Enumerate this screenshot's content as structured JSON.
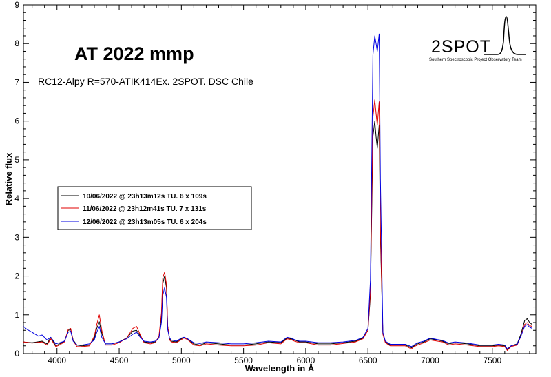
{
  "chart_data": {
    "type": "line",
    "title": "AT 2022 mmp",
    "subtitle": "RC12-Alpy R=570-ATIK414Ex. 2SPOT. DSC Chile",
    "xlabel": "Wavelength in Å",
    "ylabel": "Relative flux",
    "xlim": [
      3730,
      7850
    ],
    "ylim": [
      0,
      9
    ],
    "xticks": [
      4000,
      4500,
      5000,
      5500,
      6000,
      6500,
      7000,
      7500
    ],
    "yticks": [
      0,
      1,
      2,
      3,
      4,
      5,
      6,
      7,
      8,
      9
    ],
    "grid": false,
    "legend_position": "left-middle",
    "series": [
      {
        "name": "10/06/2022 @ 23h13m12s TU.  6 x 109s",
        "color": "#000000",
        "x": [
          3730,
          3800,
          3880,
          3920,
          3950,
          3990,
          4020,
          4060,
          4090,
          4110,
          4130,
          4160,
          4200,
          4260,
          4300,
          4320,
          4340,
          4360,
          4390,
          4440,
          4500,
          4560,
          4610,
          4640,
          4670,
          4700,
          4750,
          4790,
          4820,
          4840,
          4850,
          4865,
          4880,
          4890,
          4905,
          4920,
          4960,
          5000,
          5020,
          5050,
          5100,
          5150,
          5200,
          5300,
          5400,
          5500,
          5600,
          5700,
          5800,
          5850,
          5880,
          5910,
          5950,
          6000,
          6100,
          6200,
          6300,
          6400,
          6460,
          6500,
          6520,
          6540,
          6555,
          6565,
          6575,
          6590,
          6600,
          6620,
          6640,
          6680,
          6750,
          6800,
          6850,
          6870,
          6900,
          6950,
          7000,
          7060,
          7100,
          7150,
          7200,
          7300,
          7400,
          7500,
          7550,
          7600,
          7620,
          7650,
          7700,
          7730,
          7760,
          7780,
          7800,
          7820
        ],
        "y": [
          0.3,
          0.28,
          0.32,
          0.25,
          0.42,
          0.2,
          0.25,
          0.32,
          0.6,
          0.62,
          0.35,
          0.22,
          0.2,
          0.22,
          0.4,
          0.65,
          0.82,
          0.52,
          0.25,
          0.25,
          0.3,
          0.4,
          0.58,
          0.6,
          0.45,
          0.3,
          0.28,
          0.3,
          0.42,
          0.95,
          1.8,
          2.0,
          1.7,
          0.7,
          0.38,
          0.32,
          0.3,
          0.38,
          0.42,
          0.38,
          0.25,
          0.22,
          0.28,
          0.25,
          0.22,
          0.22,
          0.25,
          0.3,
          0.28,
          0.4,
          0.38,
          0.35,
          0.3,
          0.3,
          0.25,
          0.25,
          0.28,
          0.32,
          0.4,
          0.6,
          1.5,
          5.6,
          6.0,
          5.6,
          5.3,
          5.9,
          3.0,
          0.5,
          0.3,
          0.22,
          0.22,
          0.22,
          0.15,
          0.2,
          0.25,
          0.3,
          0.38,
          0.35,
          0.32,
          0.25,
          0.28,
          0.25,
          0.2,
          0.2,
          0.22,
          0.2,
          0.1,
          0.2,
          0.25,
          0.5,
          0.85,
          0.9,
          0.8,
          0.75
        ]
      },
      {
        "name": "11/06/2022 @ 23h12m41s TU.  7 x 131s",
        "color": "#e00000",
        "x": [
          3730,
          3800,
          3880,
          3920,
          3950,
          3990,
          4020,
          4060,
          4090,
          4110,
          4130,
          4160,
          4200,
          4260,
          4300,
          4320,
          4340,
          4360,
          4390,
          4440,
          4500,
          4560,
          4610,
          4640,
          4670,
          4700,
          4750,
          4790,
          4820,
          4840,
          4850,
          4865,
          4880,
          4890,
          4905,
          4920,
          4960,
          5000,
          5020,
          5050,
          5100,
          5150,
          5200,
          5300,
          5400,
          5500,
          5600,
          5700,
          5800,
          5850,
          5880,
          5910,
          5950,
          6000,
          6100,
          6200,
          6300,
          6400,
          6460,
          6500,
          6520,
          6540,
          6555,
          6565,
          6575,
          6590,
          6600,
          6620,
          6640,
          6680,
          6750,
          6800,
          6850,
          6870,
          6900,
          6950,
          7000,
          7060,
          7100,
          7150,
          7200,
          7300,
          7400,
          7500,
          7550,
          7600,
          7620,
          7650,
          7700,
          7730,
          7760,
          7780,
          7800,
          7820
        ],
        "y": [
          0.3,
          0.27,
          0.3,
          0.22,
          0.38,
          0.18,
          0.22,
          0.3,
          0.62,
          0.65,
          0.33,
          0.18,
          0.18,
          0.2,
          0.45,
          0.75,
          1.0,
          0.6,
          0.22,
          0.22,
          0.28,
          0.4,
          0.65,
          0.7,
          0.48,
          0.28,
          0.25,
          0.28,
          0.45,
          1.05,
          1.95,
          2.1,
          1.8,
          0.72,
          0.35,
          0.3,
          0.28,
          0.36,
          0.4,
          0.36,
          0.22,
          0.2,
          0.25,
          0.22,
          0.2,
          0.2,
          0.22,
          0.28,
          0.25,
          0.38,
          0.36,
          0.32,
          0.28,
          0.28,
          0.22,
          0.22,
          0.26,
          0.3,
          0.38,
          0.6,
          1.6,
          6.1,
          6.55,
          6.2,
          5.9,
          6.5,
          3.2,
          0.5,
          0.28,
          0.2,
          0.2,
          0.2,
          0.12,
          0.18,
          0.22,
          0.28,
          0.35,
          0.32,
          0.3,
          0.22,
          0.25,
          0.22,
          0.18,
          0.18,
          0.2,
          0.18,
          0.08,
          0.18,
          0.22,
          0.45,
          0.75,
          0.8,
          0.72,
          0.7
        ]
      },
      {
        "name": "12/06/2022 @ 23h13m05s TU.  6 x 204s",
        "color": "#0000e0",
        "x": [
          3730,
          3760,
          3800,
          3850,
          3880,
          3920,
          3950,
          3990,
          4020,
          4060,
          4090,
          4110,
          4130,
          4160,
          4200,
          4260,
          4300,
          4320,
          4340,
          4360,
          4390,
          4440,
          4500,
          4560,
          4610,
          4640,
          4670,
          4700,
          4750,
          4790,
          4820,
          4840,
          4850,
          4865,
          4880,
          4890,
          4905,
          4920,
          4960,
          5000,
          5020,
          5050,
          5100,
          5150,
          5200,
          5300,
          5400,
          5500,
          5600,
          5700,
          5800,
          5850,
          5880,
          5910,
          5950,
          6000,
          6100,
          6200,
          6300,
          6400,
          6460,
          6500,
          6520,
          6540,
          6555,
          6565,
          6575,
          6590,
          6600,
          6620,
          6640,
          6680,
          6750,
          6800,
          6850,
          6870,
          6900,
          6950,
          7000,
          7060,
          7100,
          7150,
          7200,
          7300,
          7400,
          7500,
          7550,
          7600,
          7620,
          7650,
          7700,
          7730,
          7760,
          7780,
          7800,
          7820
        ],
        "y": [
          0.7,
          0.62,
          0.55,
          0.45,
          0.48,
          0.35,
          0.42,
          0.25,
          0.28,
          0.32,
          0.55,
          0.58,
          0.32,
          0.22,
          0.22,
          0.25,
          0.35,
          0.55,
          0.7,
          0.42,
          0.25,
          0.25,
          0.3,
          0.38,
          0.5,
          0.55,
          0.42,
          0.32,
          0.3,
          0.32,
          0.4,
          0.8,
          1.5,
          1.7,
          1.45,
          0.62,
          0.4,
          0.35,
          0.32,
          0.4,
          0.42,
          0.38,
          0.28,
          0.26,
          0.3,
          0.28,
          0.25,
          0.25,
          0.28,
          0.32,
          0.3,
          0.42,
          0.4,
          0.36,
          0.32,
          0.32,
          0.28,
          0.28,
          0.3,
          0.34,
          0.42,
          0.65,
          1.9,
          7.7,
          8.2,
          8.0,
          7.8,
          8.25,
          4.5,
          0.55,
          0.32,
          0.24,
          0.24,
          0.24,
          0.18,
          0.22,
          0.28,
          0.32,
          0.4,
          0.36,
          0.34,
          0.27,
          0.3,
          0.27,
          0.22,
          0.22,
          0.24,
          0.22,
          0.12,
          0.2,
          0.24,
          0.45,
          0.7,
          0.75,
          0.68,
          0.65
        ]
      }
    ]
  },
  "logo": {
    "name": "2SPOT",
    "tagline": "Southern Spectroscopic Project Observatory Team"
  }
}
